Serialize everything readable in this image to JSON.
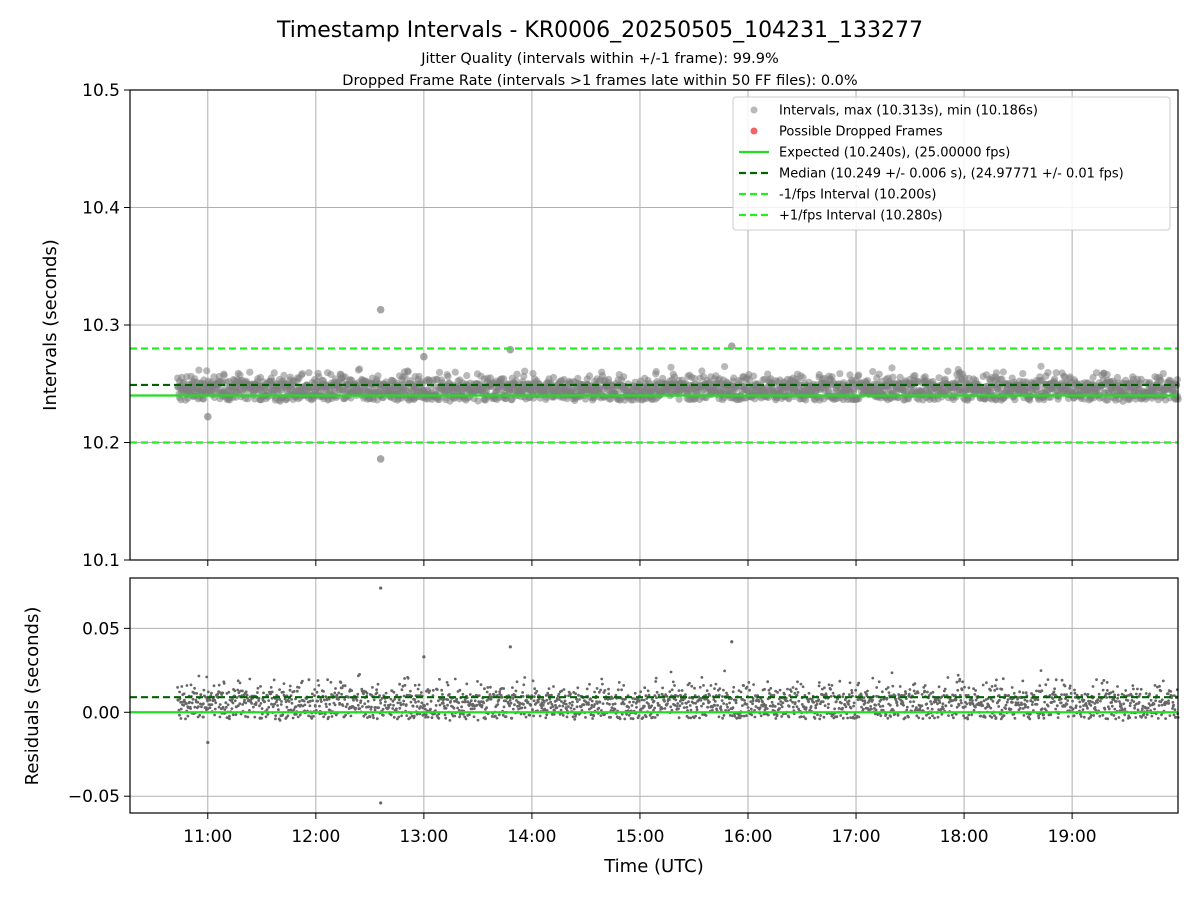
{
  "chart_data": {
    "type": "scatter",
    "title": "Timestamp Intervals - KR0006_20250505_104231_133277",
    "subtitle_lines": [
      "Jitter Quality (intervals within +/-1 frame): 99.9%",
      "Dropped Frame Rate (intervals >1 frames late within 50 FF files): 0.0%"
    ],
    "xlabel": "Time (UTC)",
    "x_range_hours": [
      10.28,
      19.98
    ],
    "x_ticks": [
      "11:00",
      "12:00",
      "13:00",
      "14:00",
      "15:00",
      "16:00",
      "17:00",
      "18:00",
      "19:00"
    ],
    "data_start_hour": 10.72,
    "data_end_hour": 19.98,
    "top_panel": {
      "ylabel": "Intervals (seconds)",
      "ylim": [
        10.1,
        10.5
      ],
      "y_ticks": [
        "10.5",
        "10.4",
        "10.3",
        "10.2",
        "10.1"
      ],
      "grid": true,
      "legend_position": "top-right",
      "legend": [
        "Intervals, max (10.313s), min (10.186s)",
        "Possible Dropped Frames",
        "Expected (10.240s), (25.00000 fps)",
        "Median (10.249 +/- 0.006 s), (24.97771 +/- 0.01 fps)",
        "-1/fps Interval (10.200s)",
        "+1/fps Interval (10.280s)"
      ],
      "expected": 10.24,
      "median": 10.249,
      "median_std": 0.006,
      "lower_bound": 10.2,
      "upper_bound": 10.28,
      "max_interval": 10.313,
      "min_interval": 10.186,
      "typical_band": [
        10.236,
        10.262
      ],
      "outliers": [
        {
          "x": 12.6,
          "y": 10.313
        },
        {
          "x": 12.6,
          "y": 10.186
        },
        {
          "x": 15.85,
          "y": 10.282
        },
        {
          "x": 13.8,
          "y": 10.279
        },
        {
          "x": 11.0,
          "y": 10.222
        },
        {
          "x": 13.0,
          "y": 10.273
        }
      ]
    },
    "bottom_panel": {
      "ylabel": "Residuals (seconds)",
      "ylim": [
        -0.06,
        0.08
      ],
      "y_ticks": [
        "0.05",
        "0.00",
        "−0.05"
      ],
      "grid": true,
      "zero_line": 0.0,
      "median_offset": 0.009,
      "outliers": [
        {
          "x": 12.6,
          "y": 0.074
        },
        {
          "x": 12.6,
          "y": -0.054
        },
        {
          "x": 15.85,
          "y": 0.042
        },
        {
          "x": 13.8,
          "y": 0.039
        },
        {
          "x": 11.0,
          "y": -0.018
        },
        {
          "x": 13.0,
          "y": 0.033
        }
      ]
    },
    "colors": {
      "points": "#808080",
      "expected": "#22dd22",
      "bounds": "#22ee22",
      "median": "#006400",
      "dropped": "#ee5555",
      "grid": "#b0b0b0"
    }
  }
}
